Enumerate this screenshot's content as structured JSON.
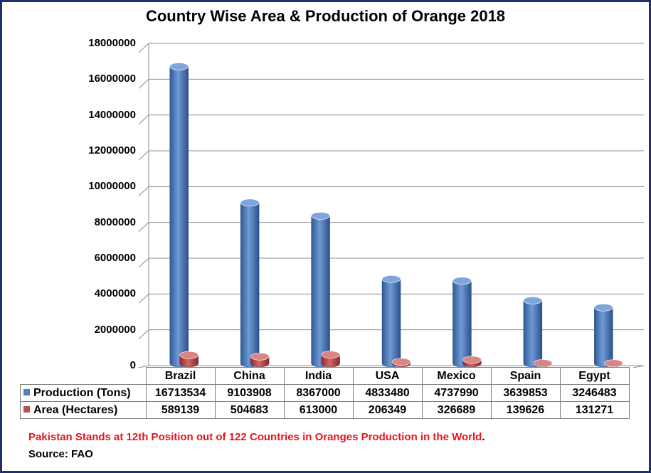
{
  "chart_data": {
    "type": "bar",
    "title": "Country Wise Area & Production of Orange 2018",
    "categories": [
      "Brazil",
      "China",
      "India",
      "USA",
      "Mexico",
      "Spain",
      "Egypt"
    ],
    "series": [
      {
        "name": "Production (Tons)",
        "values": [
          "16713534",
          "9103908",
          "8367000",
          "4833480",
          "4737990",
          "3639853",
          "3246483"
        ]
      },
      {
        "name": "Area (Hectares)",
        "values": [
          "589139",
          "504683",
          "613000",
          "206349",
          "326689",
          "139626",
          "131271"
        ]
      }
    ],
    "y_ticks": [
      "0",
      "2000000",
      "4000000",
      "6000000",
      "8000000",
      "10000000",
      "12000000",
      "14000000",
      "16000000",
      "18000000"
    ],
    "ylim": [
      0,
      18000000
    ],
    "grid": true,
    "legend": "data table",
    "colors": {
      "production": "#4f81bd",
      "area": "#c0504d",
      "frame": "#1f2f6b",
      "note": "#e8141c"
    }
  },
  "footnote": {
    "text": "Pakistan Stands at 12th Position out of 122 Countries in Oranges Production in the World",
    "end": "."
  },
  "source": "Source: FAO"
}
